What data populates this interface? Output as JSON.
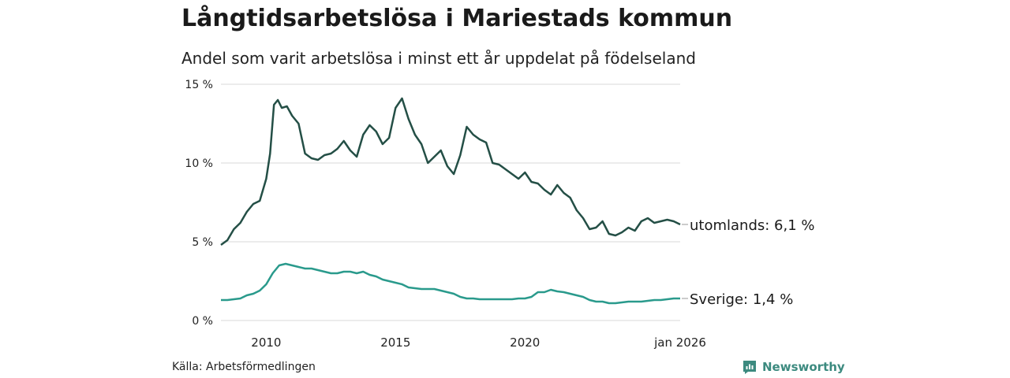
{
  "title": "Långtidsarbetslösa i Mariestads kommun",
  "subtitle": "Andel som varit arbetslösa i minst ett år uppdelat på födelseland",
  "source": "Källa: Arbetsförmedlingen",
  "brand": "Newsworthy",
  "colors": {
    "utomlands": "#244f46",
    "sverige": "#2a9a8c",
    "grid": "#d9d9d9",
    "brand": "#3c8a7f"
  },
  "chart_data": {
    "type": "line",
    "title": "Långtidsarbetslösa i Mariestads kommun",
    "subtitle": "Andel som varit arbetslösa i minst ett år uppdelat på födelseland",
    "x_range": [
      2008.25,
      2026.0
    ],
    "ylim": [
      0,
      15
    ],
    "y_ticks": [
      0,
      5,
      10,
      15
    ],
    "y_tick_labels": [
      "0 %",
      "5 %",
      "10 %",
      "15 %"
    ],
    "x_ticks": [
      2010,
      2015,
      2020,
      2026.0
    ],
    "x_tick_labels": [
      "2010",
      "2015",
      "2020",
      "jan 2026"
    ],
    "grid": true,
    "series": [
      {
        "name": "utomlands",
        "end_label": "utomlands: 6,1 %",
        "points": [
          [
            2008.25,
            4.8
          ],
          [
            2008.5,
            5.1
          ],
          [
            2008.75,
            5.8
          ],
          [
            2009.0,
            6.2
          ],
          [
            2009.25,
            6.9
          ],
          [
            2009.5,
            7.4
          ],
          [
            2009.75,
            7.6
          ],
          [
            2010.0,
            9.0
          ],
          [
            2010.15,
            10.6
          ],
          [
            2010.3,
            13.7
          ],
          [
            2010.45,
            14.0
          ],
          [
            2010.6,
            13.5
          ],
          [
            2010.8,
            13.6
          ],
          [
            2011.0,
            13.0
          ],
          [
            2011.25,
            12.5
          ],
          [
            2011.5,
            10.6
          ],
          [
            2011.75,
            10.3
          ],
          [
            2012.0,
            10.2
          ],
          [
            2012.25,
            10.5
          ],
          [
            2012.5,
            10.6
          ],
          [
            2012.75,
            10.9
          ],
          [
            2013.0,
            11.4
          ],
          [
            2013.25,
            10.8
          ],
          [
            2013.5,
            10.4
          ],
          [
            2013.75,
            11.8
          ],
          [
            2014.0,
            12.4
          ],
          [
            2014.25,
            12.0
          ],
          [
            2014.5,
            11.2
          ],
          [
            2014.75,
            11.6
          ],
          [
            2015.0,
            13.5
          ],
          [
            2015.25,
            14.1
          ],
          [
            2015.5,
            12.8
          ],
          [
            2015.75,
            11.8
          ],
          [
            2016.0,
            11.2
          ],
          [
            2016.25,
            10.0
          ],
          [
            2016.5,
            10.4
          ],
          [
            2016.75,
            10.8
          ],
          [
            2017.0,
            9.8
          ],
          [
            2017.25,
            9.3
          ],
          [
            2017.5,
            10.5
          ],
          [
            2017.75,
            12.3
          ],
          [
            2018.0,
            11.8
          ],
          [
            2018.25,
            11.5
          ],
          [
            2018.5,
            11.3
          ],
          [
            2018.75,
            10.0
          ],
          [
            2019.0,
            9.9
          ],
          [
            2019.25,
            9.6
          ],
          [
            2019.5,
            9.3
          ],
          [
            2019.75,
            9.0
          ],
          [
            2020.0,
            9.4
          ],
          [
            2020.25,
            8.8
          ],
          [
            2020.5,
            8.7
          ],
          [
            2020.75,
            8.3
          ],
          [
            2021.0,
            8.0
          ],
          [
            2021.25,
            8.6
          ],
          [
            2021.5,
            8.1
          ],
          [
            2021.75,
            7.8
          ],
          [
            2022.0,
            7.0
          ],
          [
            2022.25,
            6.5
          ],
          [
            2022.5,
            5.8
          ],
          [
            2022.75,
            5.9
          ],
          [
            2023.0,
            6.3
          ],
          [
            2023.25,
            5.5
          ],
          [
            2023.5,
            5.4
          ],
          [
            2023.75,
            5.6
          ],
          [
            2024.0,
            5.9
          ],
          [
            2024.25,
            5.7
          ],
          [
            2024.5,
            6.3
          ],
          [
            2024.75,
            6.5
          ],
          [
            2025.0,
            6.2
          ],
          [
            2025.25,
            6.3
          ],
          [
            2025.5,
            6.4
          ],
          [
            2025.75,
            6.3
          ],
          [
            2026.0,
            6.1
          ]
        ]
      },
      {
        "name": "Sverige",
        "end_label": "Sverige: 1,4 %",
        "points": [
          [
            2008.25,
            1.3
          ],
          [
            2008.5,
            1.3
          ],
          [
            2008.75,
            1.35
          ],
          [
            2009.0,
            1.4
          ],
          [
            2009.25,
            1.6
          ],
          [
            2009.5,
            1.7
          ],
          [
            2009.75,
            1.9
          ],
          [
            2010.0,
            2.3
          ],
          [
            2010.25,
            3.0
          ],
          [
            2010.5,
            3.5
          ],
          [
            2010.75,
            3.6
          ],
          [
            2011.0,
            3.5
          ],
          [
            2011.25,
            3.4
          ],
          [
            2011.5,
            3.3
          ],
          [
            2011.75,
            3.3
          ],
          [
            2012.0,
            3.2
          ],
          [
            2012.25,
            3.1
          ],
          [
            2012.5,
            3.0
          ],
          [
            2012.75,
            3.0
          ],
          [
            2013.0,
            3.1
          ],
          [
            2013.25,
            3.1
          ],
          [
            2013.5,
            3.0
          ],
          [
            2013.75,
            3.1
          ],
          [
            2014.0,
            2.9
          ],
          [
            2014.25,
            2.8
          ],
          [
            2014.5,
            2.6
          ],
          [
            2014.75,
            2.5
          ],
          [
            2015.0,
            2.4
          ],
          [
            2015.25,
            2.3
          ],
          [
            2015.5,
            2.1
          ],
          [
            2015.75,
            2.05
          ],
          [
            2016.0,
            2.0
          ],
          [
            2016.25,
            2.0
          ],
          [
            2016.5,
            2.0
          ],
          [
            2016.75,
            1.9
          ],
          [
            2017.0,
            1.8
          ],
          [
            2017.25,
            1.7
          ],
          [
            2017.5,
            1.5
          ],
          [
            2017.75,
            1.4
          ],
          [
            2018.0,
            1.4
          ],
          [
            2018.25,
            1.35
          ],
          [
            2018.5,
            1.35
          ],
          [
            2018.75,
            1.35
          ],
          [
            2019.0,
            1.35
          ],
          [
            2019.25,
            1.35
          ],
          [
            2019.5,
            1.35
          ],
          [
            2019.75,
            1.4
          ],
          [
            2020.0,
            1.4
          ],
          [
            2020.25,
            1.5
          ],
          [
            2020.5,
            1.8
          ],
          [
            2020.75,
            1.8
          ],
          [
            2021.0,
            1.95
          ],
          [
            2021.25,
            1.85
          ],
          [
            2021.5,
            1.8
          ],
          [
            2021.75,
            1.7
          ],
          [
            2022.0,
            1.6
          ],
          [
            2022.25,
            1.5
          ],
          [
            2022.5,
            1.3
          ],
          [
            2022.75,
            1.2
          ],
          [
            2023.0,
            1.2
          ],
          [
            2023.25,
            1.1
          ],
          [
            2023.5,
            1.1
          ],
          [
            2023.75,
            1.15
          ],
          [
            2024.0,
            1.2
          ],
          [
            2024.25,
            1.2
          ],
          [
            2024.5,
            1.2
          ],
          [
            2024.75,
            1.25
          ],
          [
            2025.0,
            1.3
          ],
          [
            2025.25,
            1.3
          ],
          [
            2025.5,
            1.35
          ],
          [
            2025.75,
            1.4
          ],
          [
            2026.0,
            1.4
          ]
        ]
      }
    ]
  }
}
